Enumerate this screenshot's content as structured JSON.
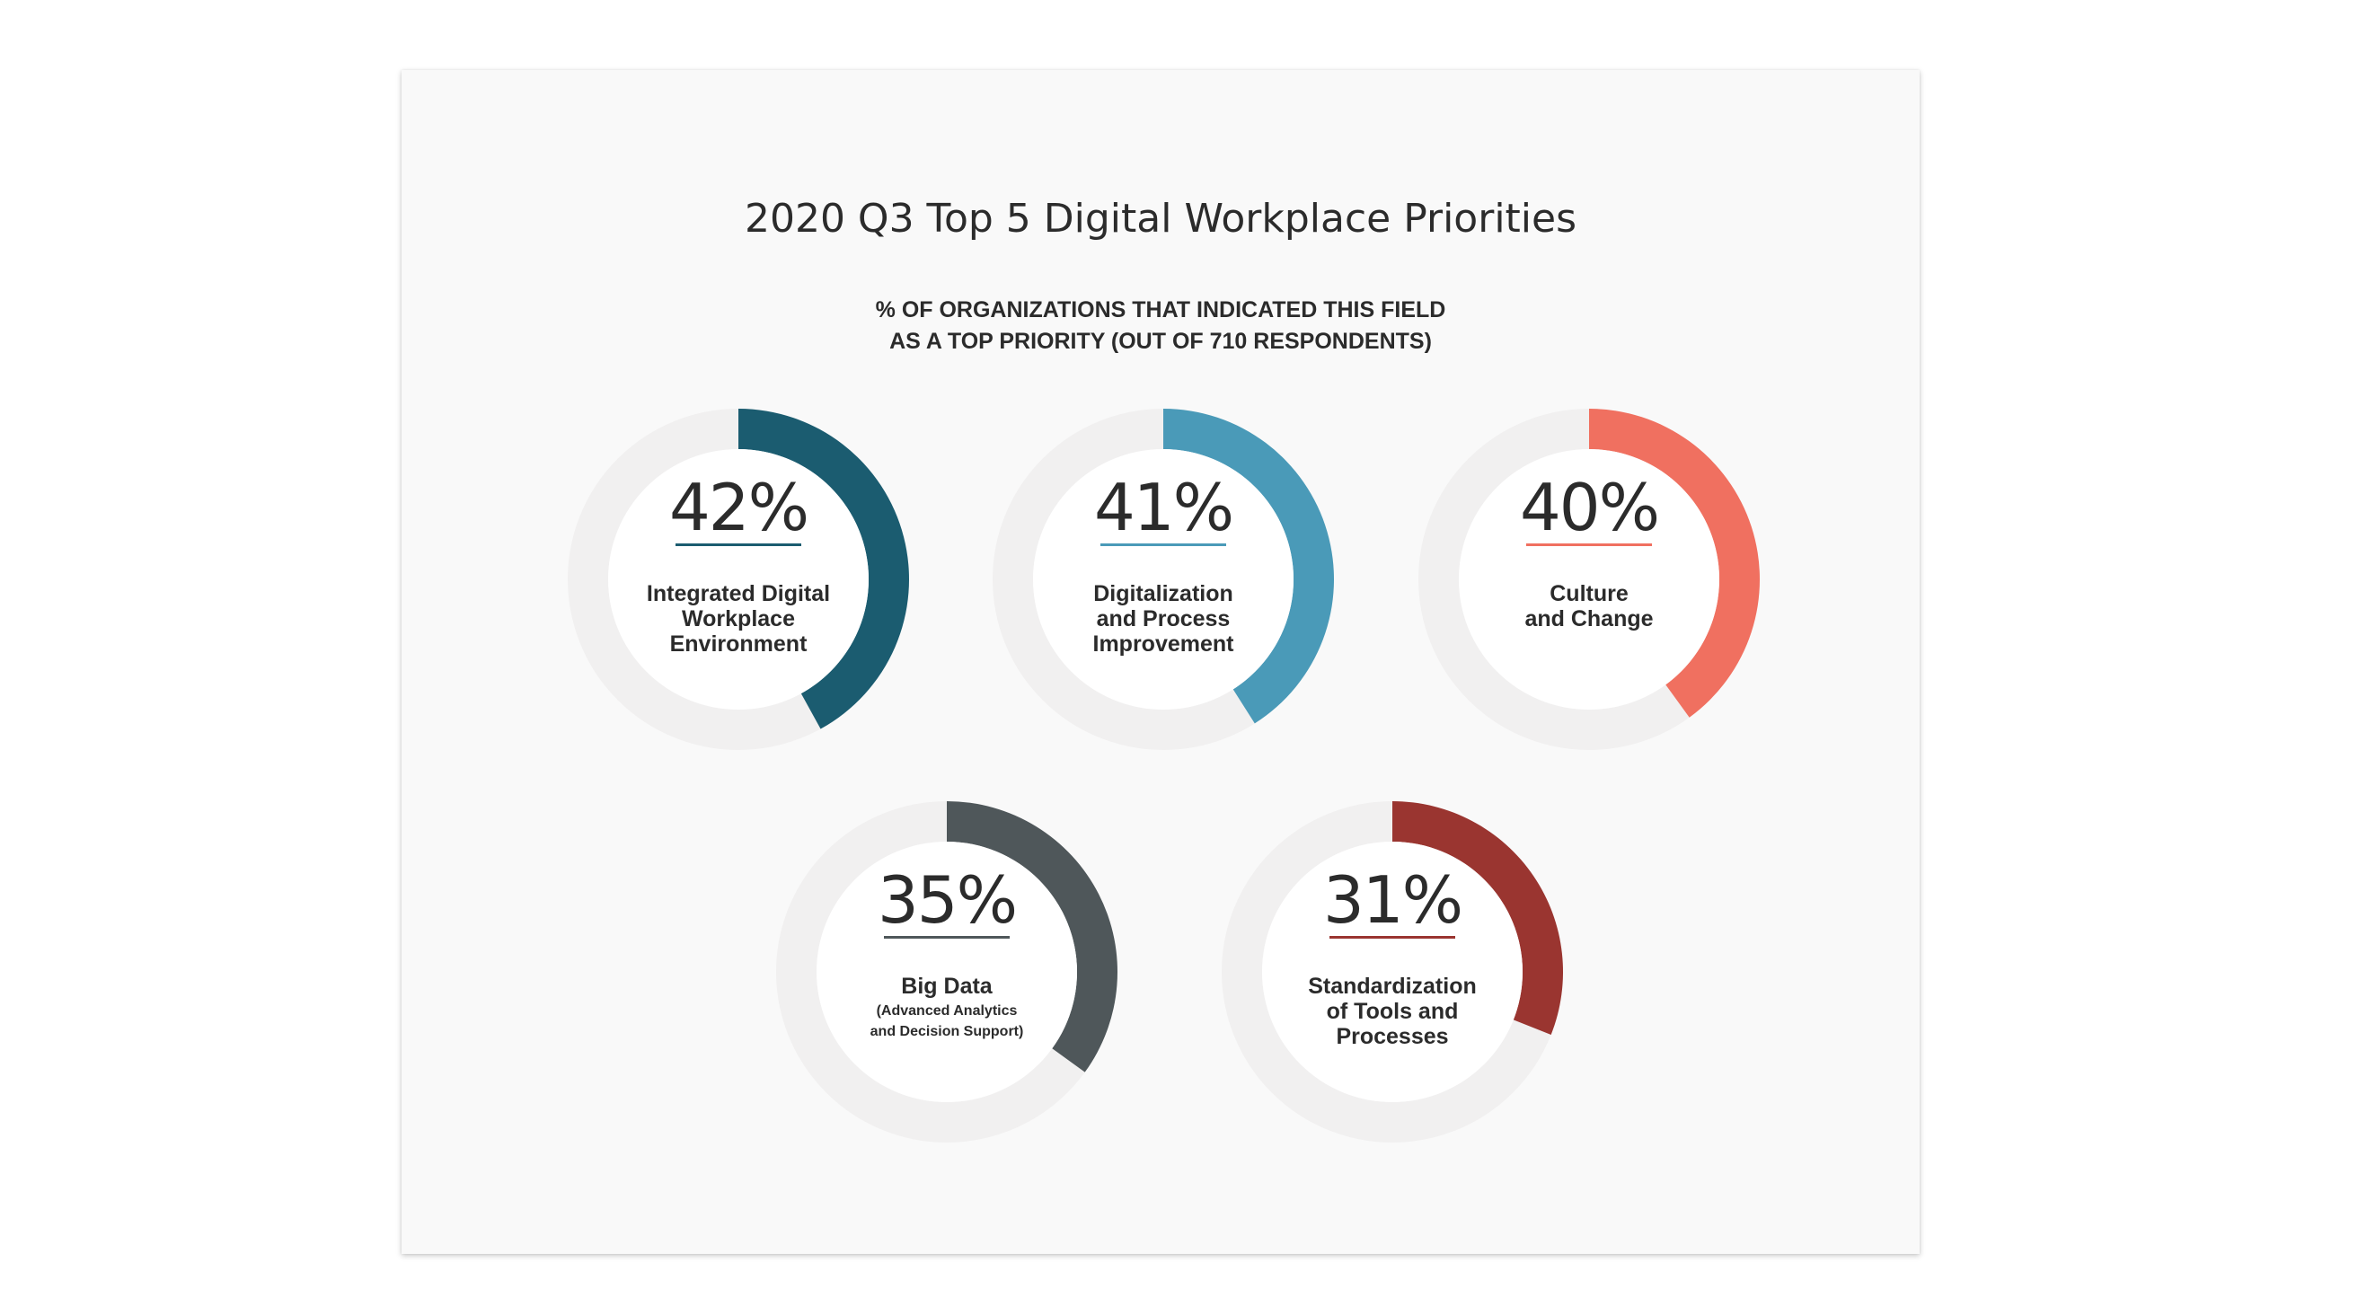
{
  "colors": {
    "track": "#f1f0f0",
    "inner": "#ffffff",
    "text": "#2b2b2b"
  },
  "chart_data": {
    "type": "donut",
    "title": "2020 Q3 Top 5 Digital Workplace Priorities",
    "subtitle": [
      "% OF  ORGANIZATIONS THAT INDICATED THIS FIELD",
      "AS A TOP PRIORITY (OUT OF 710 RESPONDENTS)"
    ],
    "unit": "%",
    "series": [
      {
        "value": 42,
        "percent_label": "42%",
        "color": "#1b5c70",
        "label_lines": [
          "Integrated Digital",
          "Workplace",
          "Environment"
        ],
        "sub_lines": []
      },
      {
        "value": 41,
        "percent_label": "41%",
        "color": "#4a9ab8",
        "label_lines": [
          "Digitalization",
          "and Process",
          "Improvement"
        ],
        "sub_lines": []
      },
      {
        "value": 40,
        "percent_label": "40%",
        "color": "#f07060",
        "label_lines": [
          "Culture",
          "and Change"
        ],
        "sub_lines": []
      },
      {
        "value": 35,
        "percent_label": "35%",
        "color": "#4f575a",
        "label_lines": [
          "Big Data"
        ],
        "sub_lines": [
          "(Advanced Analytics",
          "and Decision Support)"
        ]
      },
      {
        "value": 31,
        "percent_label": "31%",
        "color": "#9a3530",
        "label_lines": [
          "Standardization",
          "of Tools and",
          "Processes"
        ],
        "sub_lines": []
      }
    ]
  }
}
